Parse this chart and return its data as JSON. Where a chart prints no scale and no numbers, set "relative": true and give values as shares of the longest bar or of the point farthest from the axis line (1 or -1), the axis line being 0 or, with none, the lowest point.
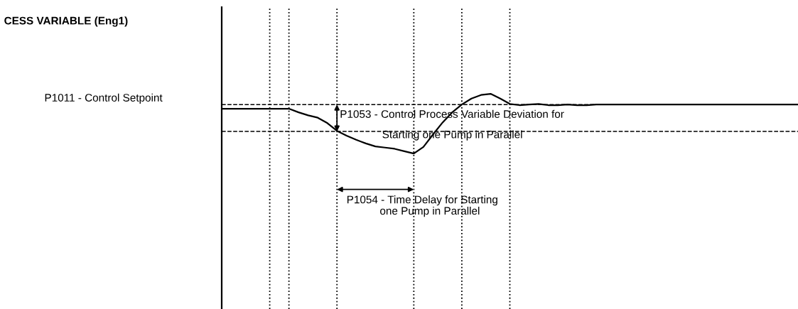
{
  "chart_data": {
    "type": "line",
    "relative": true,
    "title": "CESS VARIABLE (Eng1)",
    "categories": [
      null,
      null,
      null,
      null,
      null,
      null,
      null,
      null,
      null,
      null,
      null,
      null,
      null,
      null,
      null,
      null,
      null,
      null,
      null,
      null,
      null,
      null,
      null,
      null,
      null,
      null,
      null,
      null,
      null,
      null,
      null,
      null,
      null,
      null,
      null,
      null,
      null,
      null,
      null,
      null,
      null,
      null,
      null,
      null,
      null,
      null,
      null,
      null,
      null,
      null,
      null,
      null,
      null,
      null,
      null,
      null,
      null,
      null,
      null,
      null,
      null
    ],
    "series": [
      {
        "color": "#000000",
        "values": [
          0.75,
          0.75,
          0.75,
          0.75,
          0.75,
          0.75,
          0.75,
          0.75,
          0.69,
          0.64,
          0.6,
          0.51,
          0.38,
          0.3,
          0.23,
          0.17,
          0.12,
          0.1,
          0.08,
          0.04,
          0,
          0.11,
          0.32,
          0.52,
          0.69,
          0.82,
          0.92,
          0.98,
          1,
          0.92,
          0.83,
          0.81,
          0.82,
          0.83,
          0.81,
          0.81,
          0.82,
          0.81,
          0.81,
          0.82,
          0.82,
          0.82,
          0.82,
          0.82,
          0.82,
          0.82,
          0.82,
          0.82,
          0.82,
          0.82,
          0.82,
          0.82,
          0.82,
          0.82,
          0.82,
          0.82,
          0.82,
          0.82,
          0.82,
          0.82,
          0.82
        ]
      }
    ],
    "ref_lines": [
      {
        "axis": "y",
        "value": 0.82,
        "label": "P1011 - Control Setpoint",
        "line_style": "dashed"
      },
      {
        "axis": "y",
        "value": 0.37,
        "line_style": "dashed"
      }
    ],
    "annotations": [
      "P1053 - Control Process Variable Deviation for\n              Starting one Pump in Parallel",
      "P1054 - Time Delay for Starting\n           one Pump in Parallel"
    ],
    "grid": "x",
    "marker": "none",
    "line_style": "solid"
  }
}
